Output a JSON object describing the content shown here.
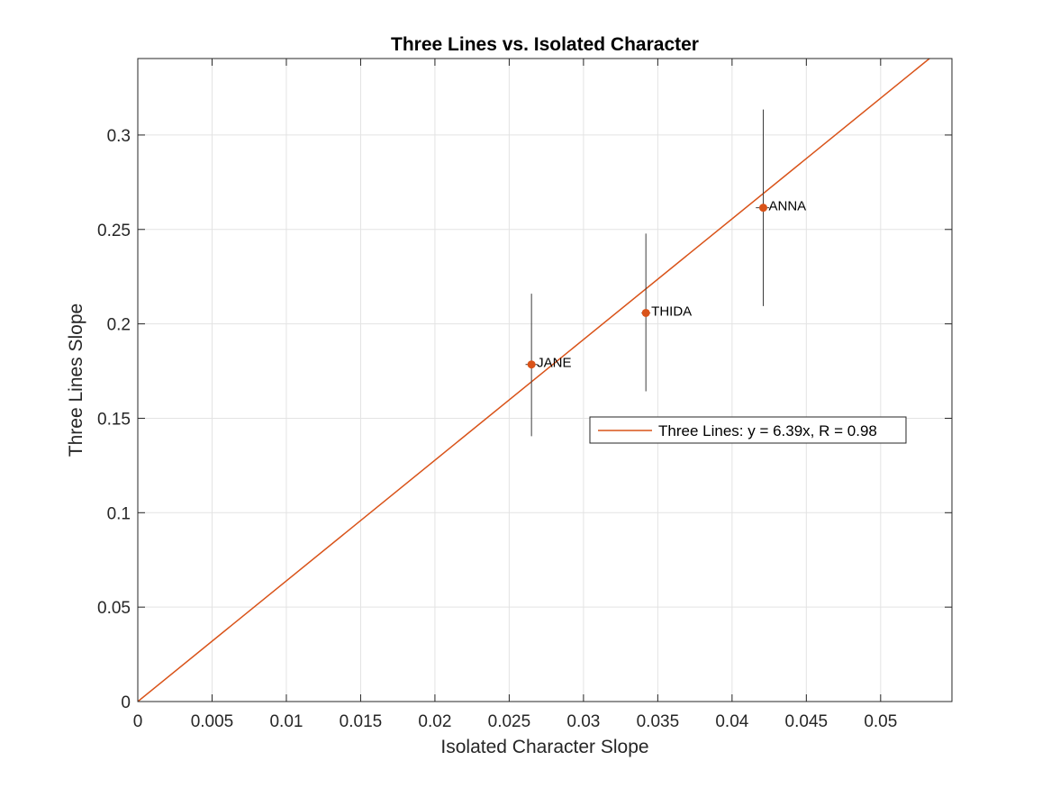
{
  "chart_data": {
    "type": "scatter",
    "title": "Three Lines vs. Isolated Character",
    "xlabel": "Isolated Character Slope",
    "ylabel": "Three Lines Slope",
    "xlim": [
      0,
      0.0548
    ],
    "ylim": [
      0,
      0.3405
    ],
    "grid": true,
    "x_ticks": [
      0,
      0.005,
      0.01,
      0.015,
      0.02,
      0.025,
      0.03,
      0.035,
      0.04,
      0.045,
      0.05
    ],
    "x_tick_labels": [
      "0",
      "0.005",
      "0.01",
      "0.015",
      "0.02",
      "0.025",
      "0.03",
      "0.035",
      "0.04",
      "0.045",
      "0.05"
    ],
    "y_ticks": [
      0,
      0.05,
      0.1,
      0.15,
      0.2,
      0.25,
      0.3
    ],
    "y_tick_labels": [
      "0",
      "0.05",
      "0.1",
      "0.15",
      "0.2",
      "0.25",
      "0.3"
    ],
    "points": [
      {
        "label": "JANE",
        "x": 0.0265,
        "y": 0.1785,
        "y_err_low": 0.1405,
        "y_err_high": 0.216,
        "x_err_low": 0.0261,
        "x_err_high": 0.0269
      },
      {
        "label": "THIDA",
        "x": 0.0342,
        "y": 0.2058,
        "y_err_low": 0.1643,
        "y_err_high": 0.2478,
        "x_err_low": 0.0339,
        "x_err_high": 0.0345
      },
      {
        "label": "ANNA",
        "x": 0.0421,
        "y": 0.2615,
        "y_err_low": 0.2094,
        "y_err_high": 0.3135,
        "x_err_low": 0.0416,
        "x_err_high": 0.0425
      }
    ],
    "fit": {
      "slope": 6.39,
      "intercept": 0
    },
    "legend": {
      "label": "Three Lines: y = 6.39x, R = 0.98",
      "placement": "center-right"
    },
    "colors": {
      "marker": "#d95319",
      "fit_line": "#d95319",
      "error_bar": "#3c3c3c",
      "grid": "#e3e3e3",
      "axis": "#262626"
    }
  }
}
